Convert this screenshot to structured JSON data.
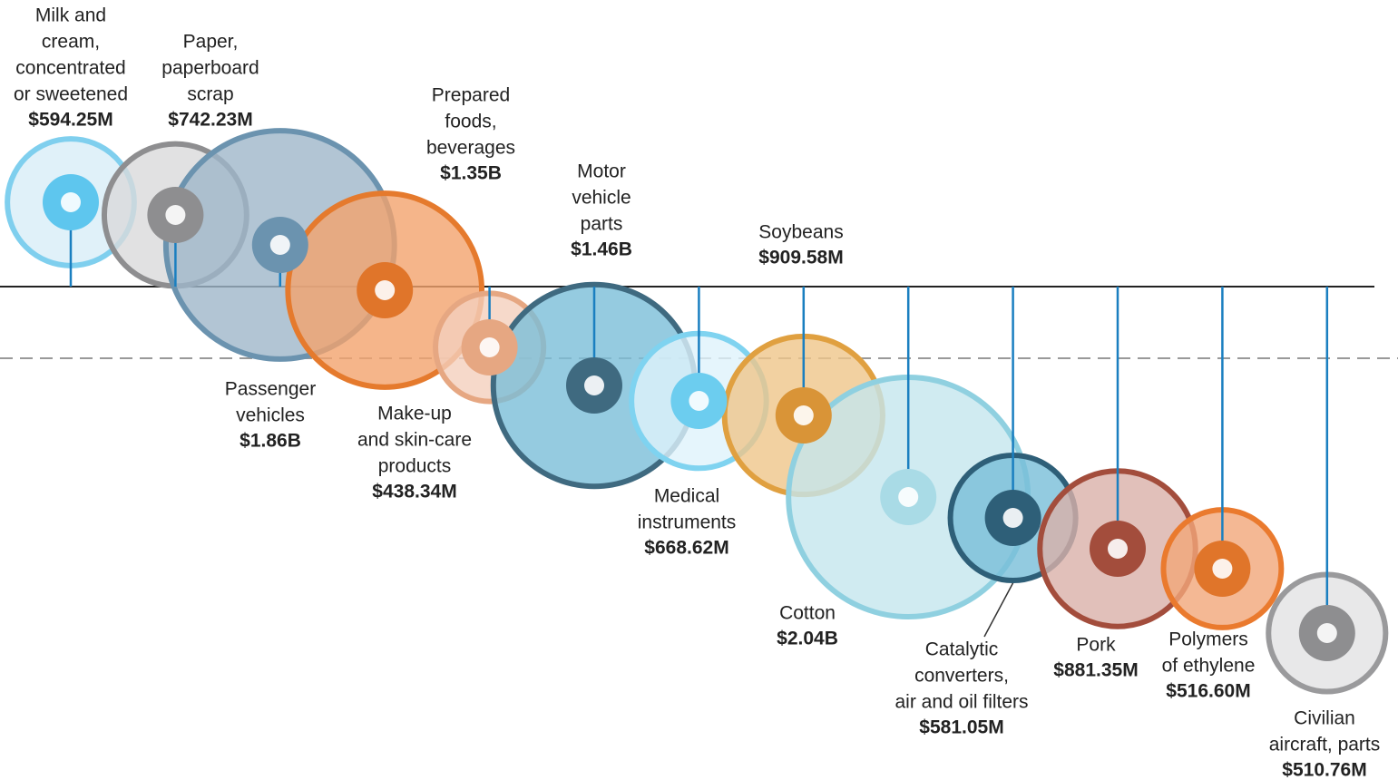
{
  "chart_data": {
    "type": "bubble",
    "categories": [
      [
        "Milk and",
        "cream,",
        "concentrated",
        "or sweetened"
      ],
      [
        "Paper,",
        "paperboard",
        "scrap"
      ],
      [
        "Passenger",
        "vehicles"
      ],
      [
        "Prepared",
        "foods,",
        "beverages"
      ],
      [
        "Make-up",
        "and skin-care",
        "products"
      ],
      [
        "Motor",
        "vehicle",
        "parts"
      ],
      [
        "Medical",
        "instruments"
      ],
      [
        "Soybeans"
      ],
      [
        "Cotton"
      ],
      [
        "Catalytic",
        "converters,",
        "air and oil filters"
      ],
      [
        "Pork"
      ],
      [
        "Polymers",
        "of ethylene"
      ],
      [
        "Civilian",
        "aircraft, parts"
      ]
    ],
    "values": [
      594250000,
      742230000,
      1860000000,
      1350000000,
      438340000,
      1460000000,
      668620000,
      909580000,
      2040000000,
      581050000,
      881350000,
      516600000,
      510760000
    ],
    "value_labels": [
      "$594.25M",
      "$742.23M",
      "$1.86B",
      "$1.35B",
      "$438.34M",
      "$1.46B",
      "$668.62M",
      "$909.58M",
      "$2.04B",
      "$581.05M",
      "$881.35M",
      "$516.60M",
      "$510.76M"
    ],
    "colors": [
      "#7fcfee",
      "#8e8e90",
      "#6b93af",
      "#e57a2d",
      "#e6a782",
      "#3f6a80",
      "#7fd3f0",
      "#e0a040",
      "#8fd0e0",
      "#2e5f78",
      "#a34d3c",
      "#ea7a2e",
      "#9a9a9c"
    ],
    "fills": [
      "#d8eef8",
      "#d9d9db",
      "#9fb7c9",
      "#f3a36d",
      "#f4d0bd",
      "#7abed8",
      "#dff3fb",
      "#efc58a",
      "#c4e6ed",
      "#78bed8",
      "#d9b0a9",
      "#f1a679",
      "#e2e2e4"
    ],
    "icon_colors": [
      "#5ec6ee",
      "#8e8e90",
      "#6b93af",
      "#e0752a",
      "#e6a782",
      "#3f6a80",
      "#6ccdef",
      "#d99437",
      "#a9dbe6",
      "#2e5f78",
      "#a34d3c",
      "#e0752a",
      "#8e8e90"
    ]
  }
}
